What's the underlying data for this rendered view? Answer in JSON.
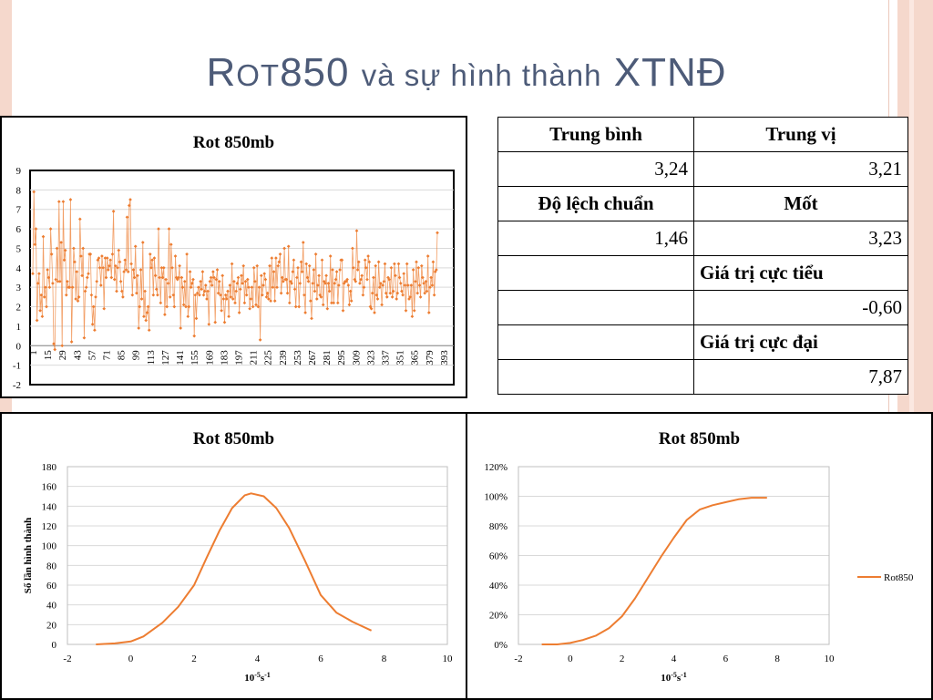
{
  "title": {
    "prefix": "R",
    "smallcaps": "OT",
    "number": "850",
    "rest": "và sự hình thành",
    "tail": "XTNĐ"
  },
  "colors": {
    "series": "#ed7d31",
    "title": "#4d5b78",
    "grid": "#d9d9d9"
  },
  "stats_table": {
    "rows": [
      [
        "Trung bình",
        "Trung vị"
      ],
      [
        "3,24",
        "3,21"
      ],
      [
        "Độ lệch chuẩn",
        "Mốt"
      ],
      [
        "1,46",
        "3,23"
      ],
      [
        "",
        "Giá trị cực tiểu"
      ],
      [
        "",
        "-0,60"
      ],
      [
        "",
        "Giá trị cực đại"
      ],
      [
        "",
        "7,87"
      ]
    ]
  },
  "chart_data": [
    {
      "type": "line",
      "title": "Rot 850mb",
      "ylim": [
        -2,
        9
      ],
      "yticks": [
        "9",
        "8",
        "7",
        "6",
        "5",
        "4",
        "3",
        "2",
        "1",
        "0",
        "-1",
        "-2"
      ],
      "xticks": [
        "1",
        "15",
        "29",
        "43",
        "57",
        "71",
        "85",
        "99",
        "113",
        "127",
        "141",
        "155",
        "169",
        "183",
        "197",
        "211",
        "225",
        "239",
        "253",
        "267",
        "281",
        "295",
        "309",
        "323",
        "337",
        "351",
        "365",
        "379",
        "393"
      ],
      "x_count": 400,
      "values": [
        3.7,
        7.9,
        5.2,
        6.0,
        1.3,
        3.2,
        3.7,
        1.8,
        2.6,
        1.5,
        5.6,
        2.5,
        3.0,
        2.0,
        3.9,
        3.5,
        3.0,
        6.0,
        4.7,
        3.2,
        0.1,
        -0.2,
        3.4,
        5.0,
        3.3,
        7.4,
        3.3,
        5.3,
        0.0,
        7.4,
        4.4,
        4.9,
        2.6,
        3.3,
        3.0,
        3.0,
        7.5,
        0.2,
        3.0,
        5.0,
        4.3,
        2.4,
        3.8,
        2.3,
        2.5,
        6.5,
        4.6,
        3.6,
        5.0,
        0.4,
        2.8,
        3.0,
        3.5,
        3.7,
        4.7,
        4.7,
        2.6,
        1.1,
        2.0,
        0.8,
        2.5,
        3.3,
        4.4,
        4.5,
        4.0,
        3.1,
        4.6,
        4.0,
        1.9,
        4.5,
        3.5,
        4.5,
        3.9,
        4.1,
        4.4,
        3.5,
        4.7,
        6.9,
        3.4,
        4.1,
        2.8,
        4.0,
        4.9,
        4.3,
        3.3,
        2.8,
        2.5,
        3.8,
        4.4,
        3.9,
        6.6,
        3.8,
        7.2,
        7.5,
        4.2,
        2.6,
        3.9,
        3.5,
        5.1,
        2.7,
        3.6,
        0.9,
        2.0,
        3.9,
        2.4,
        5.3,
        1.5,
        2.8,
        1.3,
        1.7,
        2.0,
        0.8,
        4.7,
        4.0,
        4.4,
        2.6,
        4.5,
        3.6,
        2.9,
        2.6,
        6.0,
        3.5,
        2.2,
        4.0,
        3.5,
        4.0,
        1.6,
        3.4,
        2.0,
        3.2,
        6.0,
        2.5,
        5.2,
        4.0,
        2.6,
        2.0,
        4.6,
        3.5,
        3.4,
        3.5,
        4.1,
        0.9,
        3.5,
        3.0,
        2.1,
        3.3,
        2.0,
        4.7,
        1.5,
        2.0,
        3.8,
        3.0,
        3.2,
        3.4,
        0.5,
        2.6,
        1.4,
        2.7,
        3.0,
        2.6,
        3.3,
        2.9,
        3.8,
        2.6,
        2.8,
        3.1,
        2.4,
        2.8,
        1.1,
        3.3,
        3.5,
        3.1,
        3.8,
        3.5,
        1.2,
        3.4,
        3.9,
        2.7,
        3.3,
        2.6,
        1.8,
        3.6,
        2.4,
        1.2,
        2.6,
        2.4,
        2.8,
        1.5,
        3.1,
        2.5,
        4.2,
        2.4,
        3.3,
        2.2,
        2.8,
        3.2,
        3.5,
        1.7,
        2.9,
        3.6,
        3.2,
        4.1,
        2.2,
        3.3,
        2.6,
        3.4,
        3.0,
        1.9,
        2.4,
        3.0,
        2.0,
        4.0,
        3.3,
        2.1,
        4.1,
        2.0,
        3.0,
        0.3,
        3.6,
        2.6,
        3.1,
        3.7,
        3.4,
        2.5,
        2.7,
        2.4,
        4.1,
        2.3,
        4.5,
        3.0,
        3.8,
        2.3,
        4.5,
        3.0,
        4.1,
        4.3,
        4.7,
        2.7,
        3.5,
        3.3,
        5.0,
        3.4,
        3.4,
        2.7,
        5.1,
        2.2,
        3.3,
        3.2,
        3.8,
        4.4,
        2.9,
        2.0,
        3.5,
        4.0,
        2.0,
        3.2,
        4.3,
        3.8,
        5.3,
        2.6,
        1.7,
        4.2,
        3.5,
        3.3,
        4.1,
        2.3,
        1.4,
        3.2,
        3.9,
        2.8,
        4.7,
        2.4,
        3.1,
        3.6,
        2.6,
        2.5,
        4.4,
        2.1,
        3.3,
        3.2,
        3.6,
        1.9,
        3.2,
        2.8,
        4.6,
        2.2,
        3.9,
        2.2,
        3.2,
        3.4,
        3.8,
        2.2,
        3.1,
        3.9,
        4.4,
        4.4,
        1.8,
        3.2,
        3.3,
        3.3,
        3.4,
        3.1,
        2.1,
        2.8,
        2.3,
        5.0,
        4.0,
        3.4,
        3.3,
        5.9,
        3.9,
        4.3,
        3.2,
        3.4,
        3.6,
        2.6,
        3.0,
        4.4,
        4.0,
        3.4,
        4.6,
        4.3,
        2.0,
        1.9,
        2.7,
        3.5,
        1.7,
        4.1,
        2.6,
        2.4,
        4.3,
        3.0,
        3.2,
        2.1,
        3.1,
        3.3,
        4.2,
        2.7,
        2.5,
        3.5,
        3.4,
        2.7,
        4.0,
        2.5,
        2.8,
        4.2,
        3.6,
        2.4,
        2.7,
        4.2,
        3.5,
        3.2,
        2.8,
        2.6,
        3.7,
        3.1,
        1.8,
        4.2,
        3.1,
        2.4,
        2.5,
        3.1,
        1.5,
        3.9,
        1.8,
        3.3,
        4.3,
        2.7,
        4.0,
        3.1,
        2.5,
        4.1,
        3.5,
        3.2,
        2.7,
        3.3,
        2.8,
        4.6,
        1.7,
        3.0,
        3.5,
        3.1,
        4.3,
        2.6,
        3.8,
        3.9,
        5.8
      ]
    },
    {
      "type": "line",
      "title": "Rot 850mb",
      "ylabel": "Số lần hình thành",
      "xlabel_base": "10",
      "xlabel_exp1": "-5",
      "xlabel_mid": "s",
      "xlabel_exp2": "-1",
      "xlim": [
        -2,
        10
      ],
      "ylim": [
        0,
        180
      ],
      "xticks": [
        "-2",
        "0",
        "2",
        "4",
        "6",
        "8",
        "10"
      ],
      "yticks": [
        "180",
        "160",
        "140",
        "120",
        "100",
        "80",
        "60",
        "40",
        "20",
        "0"
      ],
      "x": [
        -1.1,
        -0.5,
        0.0,
        0.4,
        1.0,
        1.5,
        2.0,
        2.4,
        2.8,
        3.2,
        3.6,
        3.8,
        4.2,
        4.6,
        5.0,
        5.5,
        6.0,
        6.5,
        7.0,
        7.6
      ],
      "values": [
        0,
        1,
        3,
        8,
        22,
        38,
        60,
        88,
        115,
        138,
        151,
        153,
        150,
        138,
        118,
        85,
        50,
        32,
        23,
        14
      ]
    },
    {
      "type": "line",
      "title": "Rot 850mb",
      "xlabel_base": "10",
      "xlabel_exp1": "-5",
      "xlabel_mid": "s",
      "xlabel_exp2": "-1",
      "xlim": [
        -2,
        10
      ],
      "ylim": [
        0,
        1.2
      ],
      "xticks": [
        "-2",
        "0",
        "2",
        "4",
        "6",
        "8",
        "10"
      ],
      "yticks": [
        "120%",
        "100%",
        "80%",
        "60%",
        "40%",
        "20%",
        "0%"
      ],
      "legend": "Rot850",
      "x": [
        -1.1,
        -0.5,
        0.0,
        0.5,
        1.0,
        1.5,
        2.0,
        2.5,
        3.0,
        3.5,
        4.0,
        4.5,
        5.0,
        5.5,
        6.0,
        6.5,
        7.0,
        7.6
      ],
      "values": [
        0.0,
        0.0,
        0.01,
        0.03,
        0.06,
        0.11,
        0.19,
        0.31,
        0.45,
        0.59,
        0.72,
        0.84,
        0.91,
        0.94,
        0.96,
        0.98,
        0.99,
        0.99
      ]
    }
  ]
}
